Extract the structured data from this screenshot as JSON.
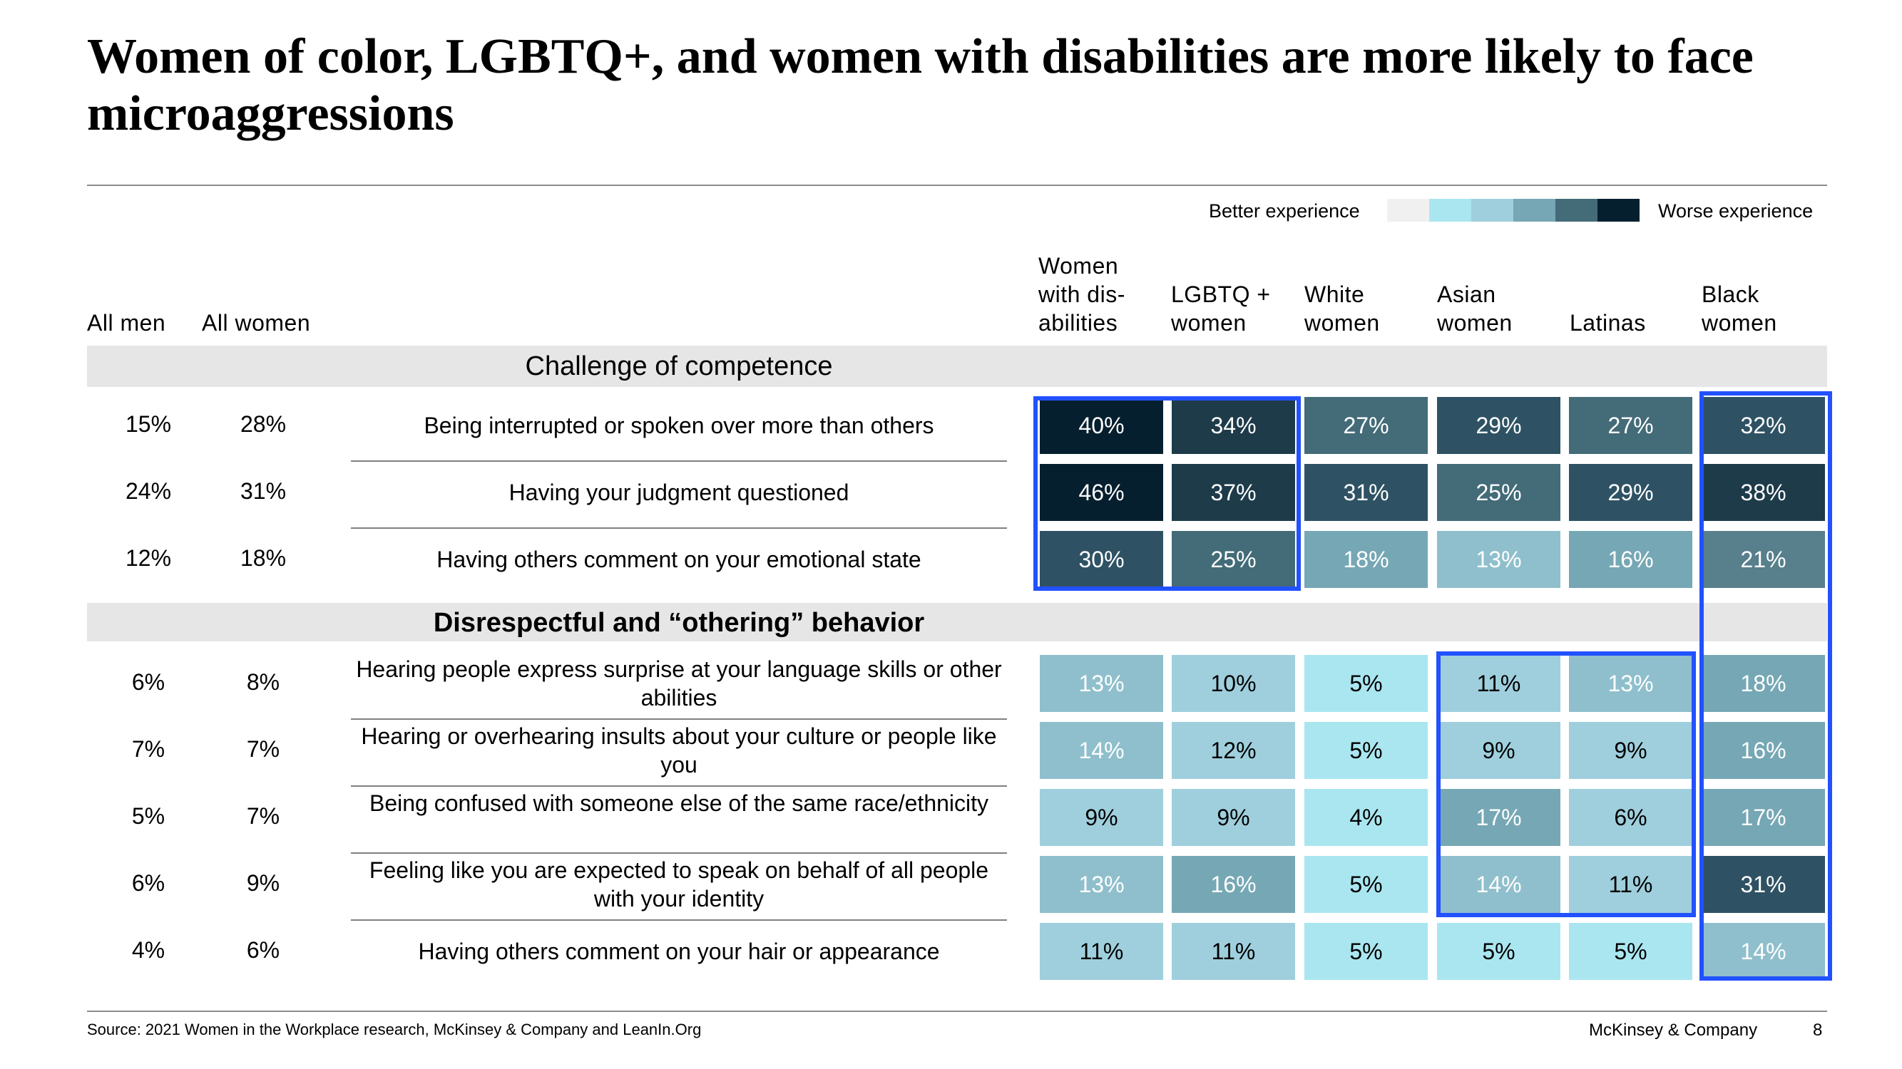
{
  "title": "Women of color, LGBTQ+, and women with disabilities are more likely to face microaggressions",
  "legend": {
    "better": "Better experience",
    "worse": "Worse experience",
    "scale_colors": [
      "#f0f0f0",
      "#aae6f0",
      "#9fcfdd",
      "#76a7b4",
      "#436b78",
      "#061f2f"
    ]
  },
  "headers": {
    "all_men": "All men",
    "all_women": "All women",
    "groups": [
      "Women with dis-abilities",
      "LGBTQ + women",
      "White women",
      "Asian women",
      "Latinas",
      "Black women"
    ]
  },
  "chart_data": {
    "type": "heatmap",
    "title": "Women of color, LGBTQ+, and women with disabilities are more likely to face microaggressions",
    "unit": "%",
    "groups": [
      "All men",
      "All women",
      "Women with dis-abilities",
      "LGBTQ + women",
      "White women",
      "Asian women",
      "Latinas",
      "Black women"
    ],
    "sections": [
      {
        "name": "Challenge of competence",
        "rows": [
          {
            "label": "Being interrupted or spoken over more than others",
            "all_men": "15%",
            "all_women": "28%",
            "values": [
              40,
              34,
              27,
              29,
              27,
              32
            ]
          },
          {
            "label": "Having your judgment questioned",
            "all_men": "24%",
            "all_women": "31%",
            "values": [
              46,
              37,
              31,
              25,
              29,
              38
            ]
          },
          {
            "label": "Having others comment on your emotional state",
            "all_men": "12%",
            "all_women": "18%",
            "values": [
              30,
              25,
              18,
              13,
              16,
              21
            ]
          }
        ]
      },
      {
        "name": "Disrespectful and “othering” behavior",
        "rows": [
          {
            "label": "Hearing people express surprise at your language skills or other abilities",
            "all_men": "6%",
            "all_women": "8%",
            "values": [
              13,
              10,
              5,
              11,
              13,
              18
            ]
          },
          {
            "label": "Hearing or overhearing insults about your culture or people like you",
            "all_men": "7%",
            "all_women": "7%",
            "values": [
              14,
              12,
              5,
              9,
              9,
              16
            ]
          },
          {
            "label": "Being confused with someone else of the same race/ethnicity",
            "all_men": "5%",
            "all_women": "7%",
            "values": [
              9,
              9,
              4,
              17,
              6,
              17
            ]
          },
          {
            "label": "Feeling like you are expected to speak on behalf of all people with your identity",
            "all_men": "6%",
            "all_women": "9%",
            "values": [
              13,
              16,
              5,
              14,
              11,
              31
            ]
          },
          {
            "label": "Having others comment on your hair or appearance",
            "all_men": "4%",
            "all_women": "6%",
            "values": [
              11,
              11,
              5,
              5,
              5,
              14
            ]
          }
        ]
      }
    ]
  },
  "footer": {
    "source": "Source: 2021 Women in the Workplace research, McKinsey & Company and LeanIn.Org",
    "brand": "McKinsey & Company",
    "page": "8"
  }
}
